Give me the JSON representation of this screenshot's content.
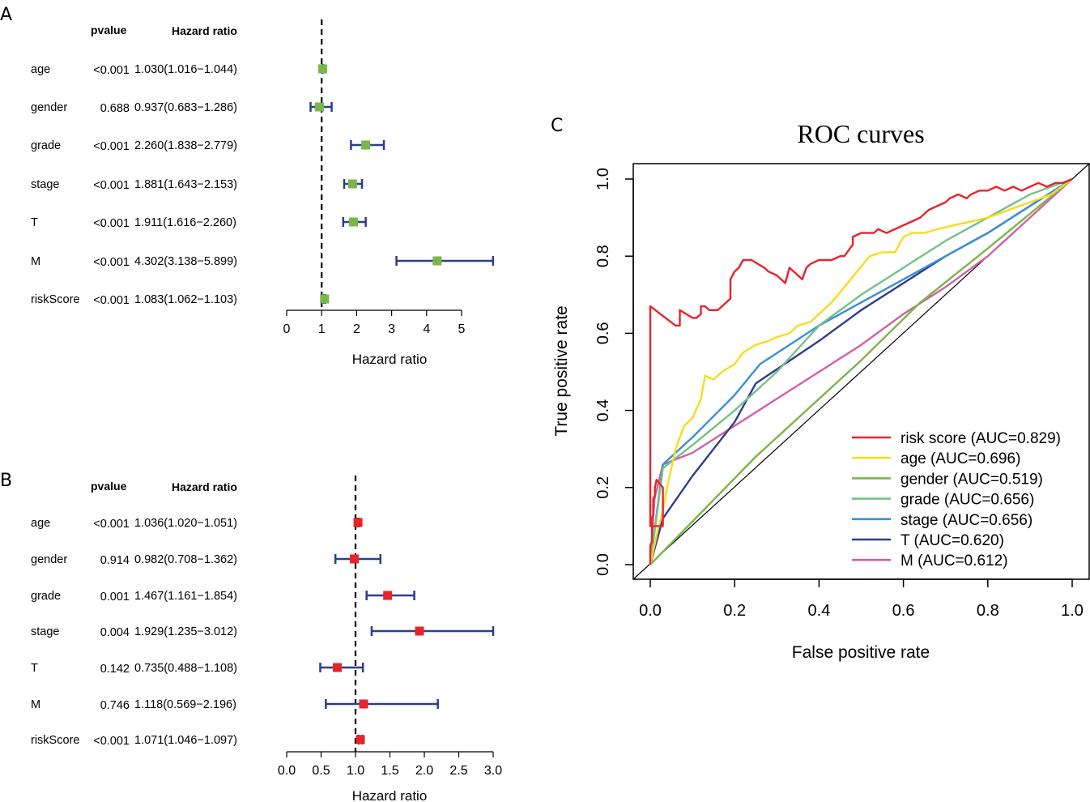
{
  "chart_data": [
    {
      "type": "forest",
      "panel": "A",
      "col_pvalue": "pvalue",
      "col_hr": "Hazard ratio",
      "xlabel": "Hazard ratio",
      "xlim": [
        0,
        5
      ],
      "xticks": [
        "0",
        "1",
        "2",
        "3",
        "4",
        "5"
      ],
      "xtick_values": [
        0,
        1,
        2,
        3,
        4,
        5
      ],
      "reference": 1,
      "marker_color": "#7ab648",
      "rows": [
        {
          "name": "age",
          "pvalue": "<0.001",
          "hr_text": "1.030(1.016−1.044)",
          "hr": 1.03,
          "lo": 1.016,
          "hi": 1.044
        },
        {
          "name": "gender",
          "pvalue": "0.688",
          "hr_text": "0.937(0.683−1.286)",
          "hr": 0.937,
          "lo": 0.683,
          "hi": 1.286
        },
        {
          "name": "grade",
          "pvalue": "<0.001",
          "hr_text": "2.260(1.838−2.779)",
          "hr": 2.26,
          "lo": 1.838,
          "hi": 2.779
        },
        {
          "name": "stage",
          "pvalue": "<0.001",
          "hr_text": "1.881(1.643−2.153)",
          "hr": 1.881,
          "lo": 1.643,
          "hi": 2.153
        },
        {
          "name": "T",
          "pvalue": "<0.001",
          "hr_text": "1.911(1.616−2.260)",
          "hr": 1.911,
          "lo": 1.616,
          "hi": 2.26
        },
        {
          "name": "M",
          "pvalue": "<0.001",
          "hr_text": "4.302(3.138−5.899)",
          "hr": 4.302,
          "lo": 3.138,
          "hi": 5.899
        },
        {
          "name": "riskScore",
          "pvalue": "<0.001",
          "hr_text": "1.083(1.062−1.103)",
          "hr": 1.083,
          "lo": 1.062,
          "hi": 1.103
        }
      ]
    },
    {
      "type": "forest",
      "panel": "B",
      "col_pvalue": "pvalue",
      "col_hr": "Hazard ratio",
      "xlabel": "Hazard ratio",
      "xlim": [
        0,
        3
      ],
      "xticks": [
        "0.0",
        "0.5",
        "1.0",
        "1.5",
        "2.0",
        "2.5",
        "3.0"
      ],
      "xtick_values": [
        0,
        0.5,
        1,
        1.5,
        2,
        2.5,
        3
      ],
      "reference": 1,
      "marker_color": "#e8242b",
      "rows": [
        {
          "name": "age",
          "pvalue": "<0.001",
          "hr_text": "1.036(1.020−1.051)",
          "hr": 1.036,
          "lo": 1.02,
          "hi": 1.051
        },
        {
          "name": "gender",
          "pvalue": "0.914",
          "hr_text": "0.982(0.708−1.362)",
          "hr": 0.982,
          "lo": 0.708,
          "hi": 1.362
        },
        {
          "name": "grade",
          "pvalue": "0.001",
          "hr_text": "1.467(1.161−1.854)",
          "hr": 1.467,
          "lo": 1.161,
          "hi": 1.854
        },
        {
          "name": "stage",
          "pvalue": "0.004",
          "hr_text": "1.929(1.235−3.012)",
          "hr": 1.929,
          "lo": 1.235,
          "hi": 3.012
        },
        {
          "name": "T",
          "pvalue": "0.142",
          "hr_text": "0.735(0.488−1.108)",
          "hr": 0.735,
          "lo": 0.488,
          "hi": 1.108
        },
        {
          "name": "M",
          "pvalue": "0.746",
          "hr_text": "1.118(0.569−2.196)",
          "hr": 1.118,
          "lo": 0.569,
          "hi": 2.196
        },
        {
          "name": "riskScore",
          "pvalue": "<0.001",
          "hr_text": "1.071(1.046−1.097)",
          "hr": 1.071,
          "lo": 1.046,
          "hi": 1.097
        }
      ]
    },
    {
      "type": "line",
      "panel": "C",
      "title": "ROC curves",
      "xlabel": "False positive rate",
      "ylabel": "True positive rate",
      "xlim": [
        0,
        1
      ],
      "ylim": [
        0,
        1
      ],
      "xticks": [
        "0.0",
        "0.2",
        "0.4",
        "0.6",
        "0.8",
        "1.0"
      ],
      "yticks": [
        "0.0",
        "0.2",
        "0.4",
        "0.6",
        "0.8",
        "1.0"
      ],
      "tick_values": [
        0,
        0.2,
        0.4,
        0.6,
        0.8,
        1.0
      ],
      "legend_position": "bottom-right",
      "series": [
        {
          "name": "risk score (AUC=0.829)",
          "color": "#e8242b",
          "x": [
            0,
            0,
            0.004,
            0.004,
            0.007,
            0.007,
            0.011,
            0.011,
            0.013,
            0.015,
            0.03,
            0.03,
            0.0,
            0.0,
            0.06,
            0.07,
            0.07,
            0.1,
            0.11,
            0.12,
            0.12,
            0.13,
            0.14,
            0.16,
            0.17,
            0.19,
            0.19,
            0.2,
            0.21,
            0.22,
            0.24,
            0.27,
            0.28,
            0.3,
            0.32,
            0.33,
            0.34,
            0.36,
            0.37,
            0.38,
            0.4,
            0.41,
            0.43,
            0.45,
            0.46,
            0.48,
            0.48,
            0.5,
            0.53,
            0.54,
            0.56,
            0.58,
            0.6,
            0.62,
            0.64,
            0.66,
            0.68,
            0.7,
            0.71,
            0.73,
            0.75,
            0.76,
            0.78,
            0.8,
            0.82,
            0.84,
            0.86,
            0.88,
            0.9,
            0.92,
            0.94,
            0.96,
            0.98,
            1.0
          ],
          "y": [
            0,
            0.05,
            0.06,
            0.12,
            0.13,
            0.17,
            0.18,
            0.2,
            0.21,
            0.22,
            0.2,
            0.1,
            0.1,
            0.67,
            0.62,
            0.62,
            0.66,
            0.64,
            0.64,
            0.65,
            0.67,
            0.67,
            0.66,
            0.66,
            0.67,
            0.69,
            0.74,
            0.76,
            0.77,
            0.79,
            0.79,
            0.77,
            0.76,
            0.75,
            0.73,
            0.77,
            0.76,
            0.74,
            0.77,
            0.78,
            0.79,
            0.79,
            0.79,
            0.8,
            0.8,
            0.83,
            0.85,
            0.86,
            0.86,
            0.87,
            0.86,
            0.87,
            0.88,
            0.89,
            0.9,
            0.92,
            0.93,
            0.94,
            0.95,
            0.96,
            0.95,
            0.96,
            0.97,
            0.97,
            0.98,
            0.97,
            0.98,
            0.97,
            0.98,
            0.99,
            0.98,
            0.99,
            0.99,
            1.0
          ]
        },
        {
          "name": "age (AUC=0.696)",
          "color": "#f6dd1e",
          "x": [
            0,
            0.01,
            0.02,
            0.03,
            0.04,
            0.06,
            0.08,
            0.1,
            0.12,
            0.13,
            0.15,
            0.17,
            0.2,
            0.22,
            0.25,
            0.28,
            0.3,
            0.33,
            0.35,
            0.38,
            0.4,
            0.43,
            0.46,
            0.49,
            0.52,
            0.55,
            0.58,
            0.6,
            0.62,
            0.65,
            0.68,
            0.72,
            0.76,
            0.8,
            0.85,
            0.9,
            0.95,
            1.0
          ],
          "y": [
            0,
            0.05,
            0.1,
            0.14,
            0.2,
            0.3,
            0.36,
            0.38,
            0.43,
            0.49,
            0.48,
            0.5,
            0.52,
            0.55,
            0.57,
            0.58,
            0.59,
            0.6,
            0.62,
            0.63,
            0.65,
            0.68,
            0.72,
            0.76,
            0.8,
            0.81,
            0.81,
            0.85,
            0.86,
            0.86,
            0.87,
            0.88,
            0.89,
            0.9,
            0.92,
            0.94,
            0.96,
            1.0
          ]
        },
        {
          "name": "gender (AUC=0.519)",
          "color": "#7ab648",
          "x": [
            0,
            0.25,
            0.5,
            0.64,
            0.8,
            1.0
          ],
          "y": [
            0,
            0.28,
            0.53,
            0.68,
            0.82,
            1.0
          ]
        },
        {
          "name": "grade (AUC=0.656)",
          "color": "#74c187",
          "x": [
            0,
            0.03,
            0.1,
            0.2,
            0.3,
            0.4,
            0.5,
            0.6,
            0.7,
            0.8,
            0.9,
            1.0
          ],
          "y": [
            0,
            0.25,
            0.31,
            0.4,
            0.5,
            0.62,
            0.7,
            0.77,
            0.84,
            0.9,
            0.96,
            1.0
          ]
        },
        {
          "name": "stage (AUC=0.656)",
          "color": "#3a8fd4",
          "x": [
            0,
            0.03,
            0.1,
            0.2,
            0.26,
            0.4,
            0.5,
            0.6,
            0.7,
            0.8,
            0.9,
            1.0
          ],
          "y": [
            0,
            0.26,
            0.33,
            0.44,
            0.52,
            0.62,
            0.68,
            0.74,
            0.8,
            0.86,
            0.93,
            1.0
          ]
        },
        {
          "name": "T (AUC=0.620)",
          "color": "#2e3d8f",
          "x": [
            0,
            0.03,
            0.1,
            0.2,
            0.25,
            0.4,
            0.5,
            0.6,
            0.7,
            0.8,
            0.9,
            1.0
          ],
          "y": [
            0,
            0.12,
            0.23,
            0.37,
            0.47,
            0.58,
            0.66,
            0.73,
            0.8,
            0.86,
            0.93,
            1.0
          ]
        },
        {
          "name": "M (AUC=0.612)",
          "color": "#d45fa3",
          "x": [
            0,
            0.01,
            0.03,
            0.1,
            0.2,
            0.3,
            0.4,
            0.5,
            0.6,
            0.7,
            0.8,
            0.9,
            1.0
          ],
          "y": [
            0,
            0.17,
            0.26,
            0.29,
            0.36,
            0.43,
            0.5,
            0.57,
            0.65,
            0.72,
            0.8,
            0.9,
            1.0
          ]
        }
      ]
    }
  ]
}
